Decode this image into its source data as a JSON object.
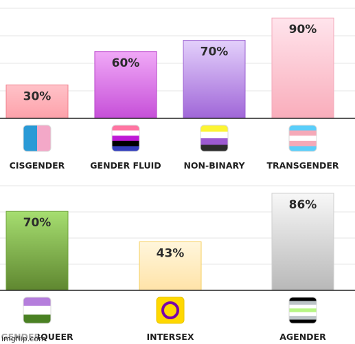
{
  "chart_data": [
    {
      "type": "bar",
      "title": "",
      "xlabel": "",
      "ylabel": "",
      "ylim": [
        0,
        100
      ],
      "grid": true,
      "categories": [
        "CISGENDER",
        "GENDER FLUID",
        "NON-BINARY",
        "TRANSGENDER"
      ],
      "values": [
        30,
        60,
        70,
        90
      ],
      "labels": [
        "30%",
        "60%",
        "70%",
        "90%"
      ],
      "colors": [
        [
          "#ffc2c8",
          "#fda1aa"
        ],
        [
          "#f0a9f7",
          "#c64fd8"
        ],
        [
          "#e3d0fb",
          "#a066d8"
        ],
        [
          "#ffe4ec",
          "#f9adbb"
        ]
      ],
      "border_colors": [
        "#f07f8c",
        "#b63fc8",
        "#9a5fd0",
        "#f3aabb"
      ],
      "icons": [
        "cisgender-flag-icon",
        "genderfluid-flag-icon",
        "nonbinary-flag-icon",
        "transgender-flag-icon"
      ]
    },
    {
      "type": "bar",
      "title": "",
      "xlabel": "",
      "ylabel": "",
      "ylim": [
        0,
        100
      ],
      "grid": true,
      "categories": [
        "GENDERQUEER",
        "INTERSEX",
        "AGENDER"
      ],
      "values": [
        70,
        43,
        86
      ],
      "labels": [
        "70%",
        "43%",
        "86%"
      ],
      "colors": [
        [
          "#a6de70",
          "#5f8730"
        ],
        [
          "#fff6dc",
          "#ffe3a8"
        ],
        [
          "#f7f7f7",
          "#b8b8b8"
        ]
      ],
      "border_colors": [
        "#6fa23c",
        "#f6cf5c",
        "#cfcfcf"
      ],
      "icons": [
        "genderqueer-flag-icon",
        "intersex-flag-icon",
        "agender-flag-icon"
      ]
    }
  ],
  "watermark": "imgflip.com"
}
